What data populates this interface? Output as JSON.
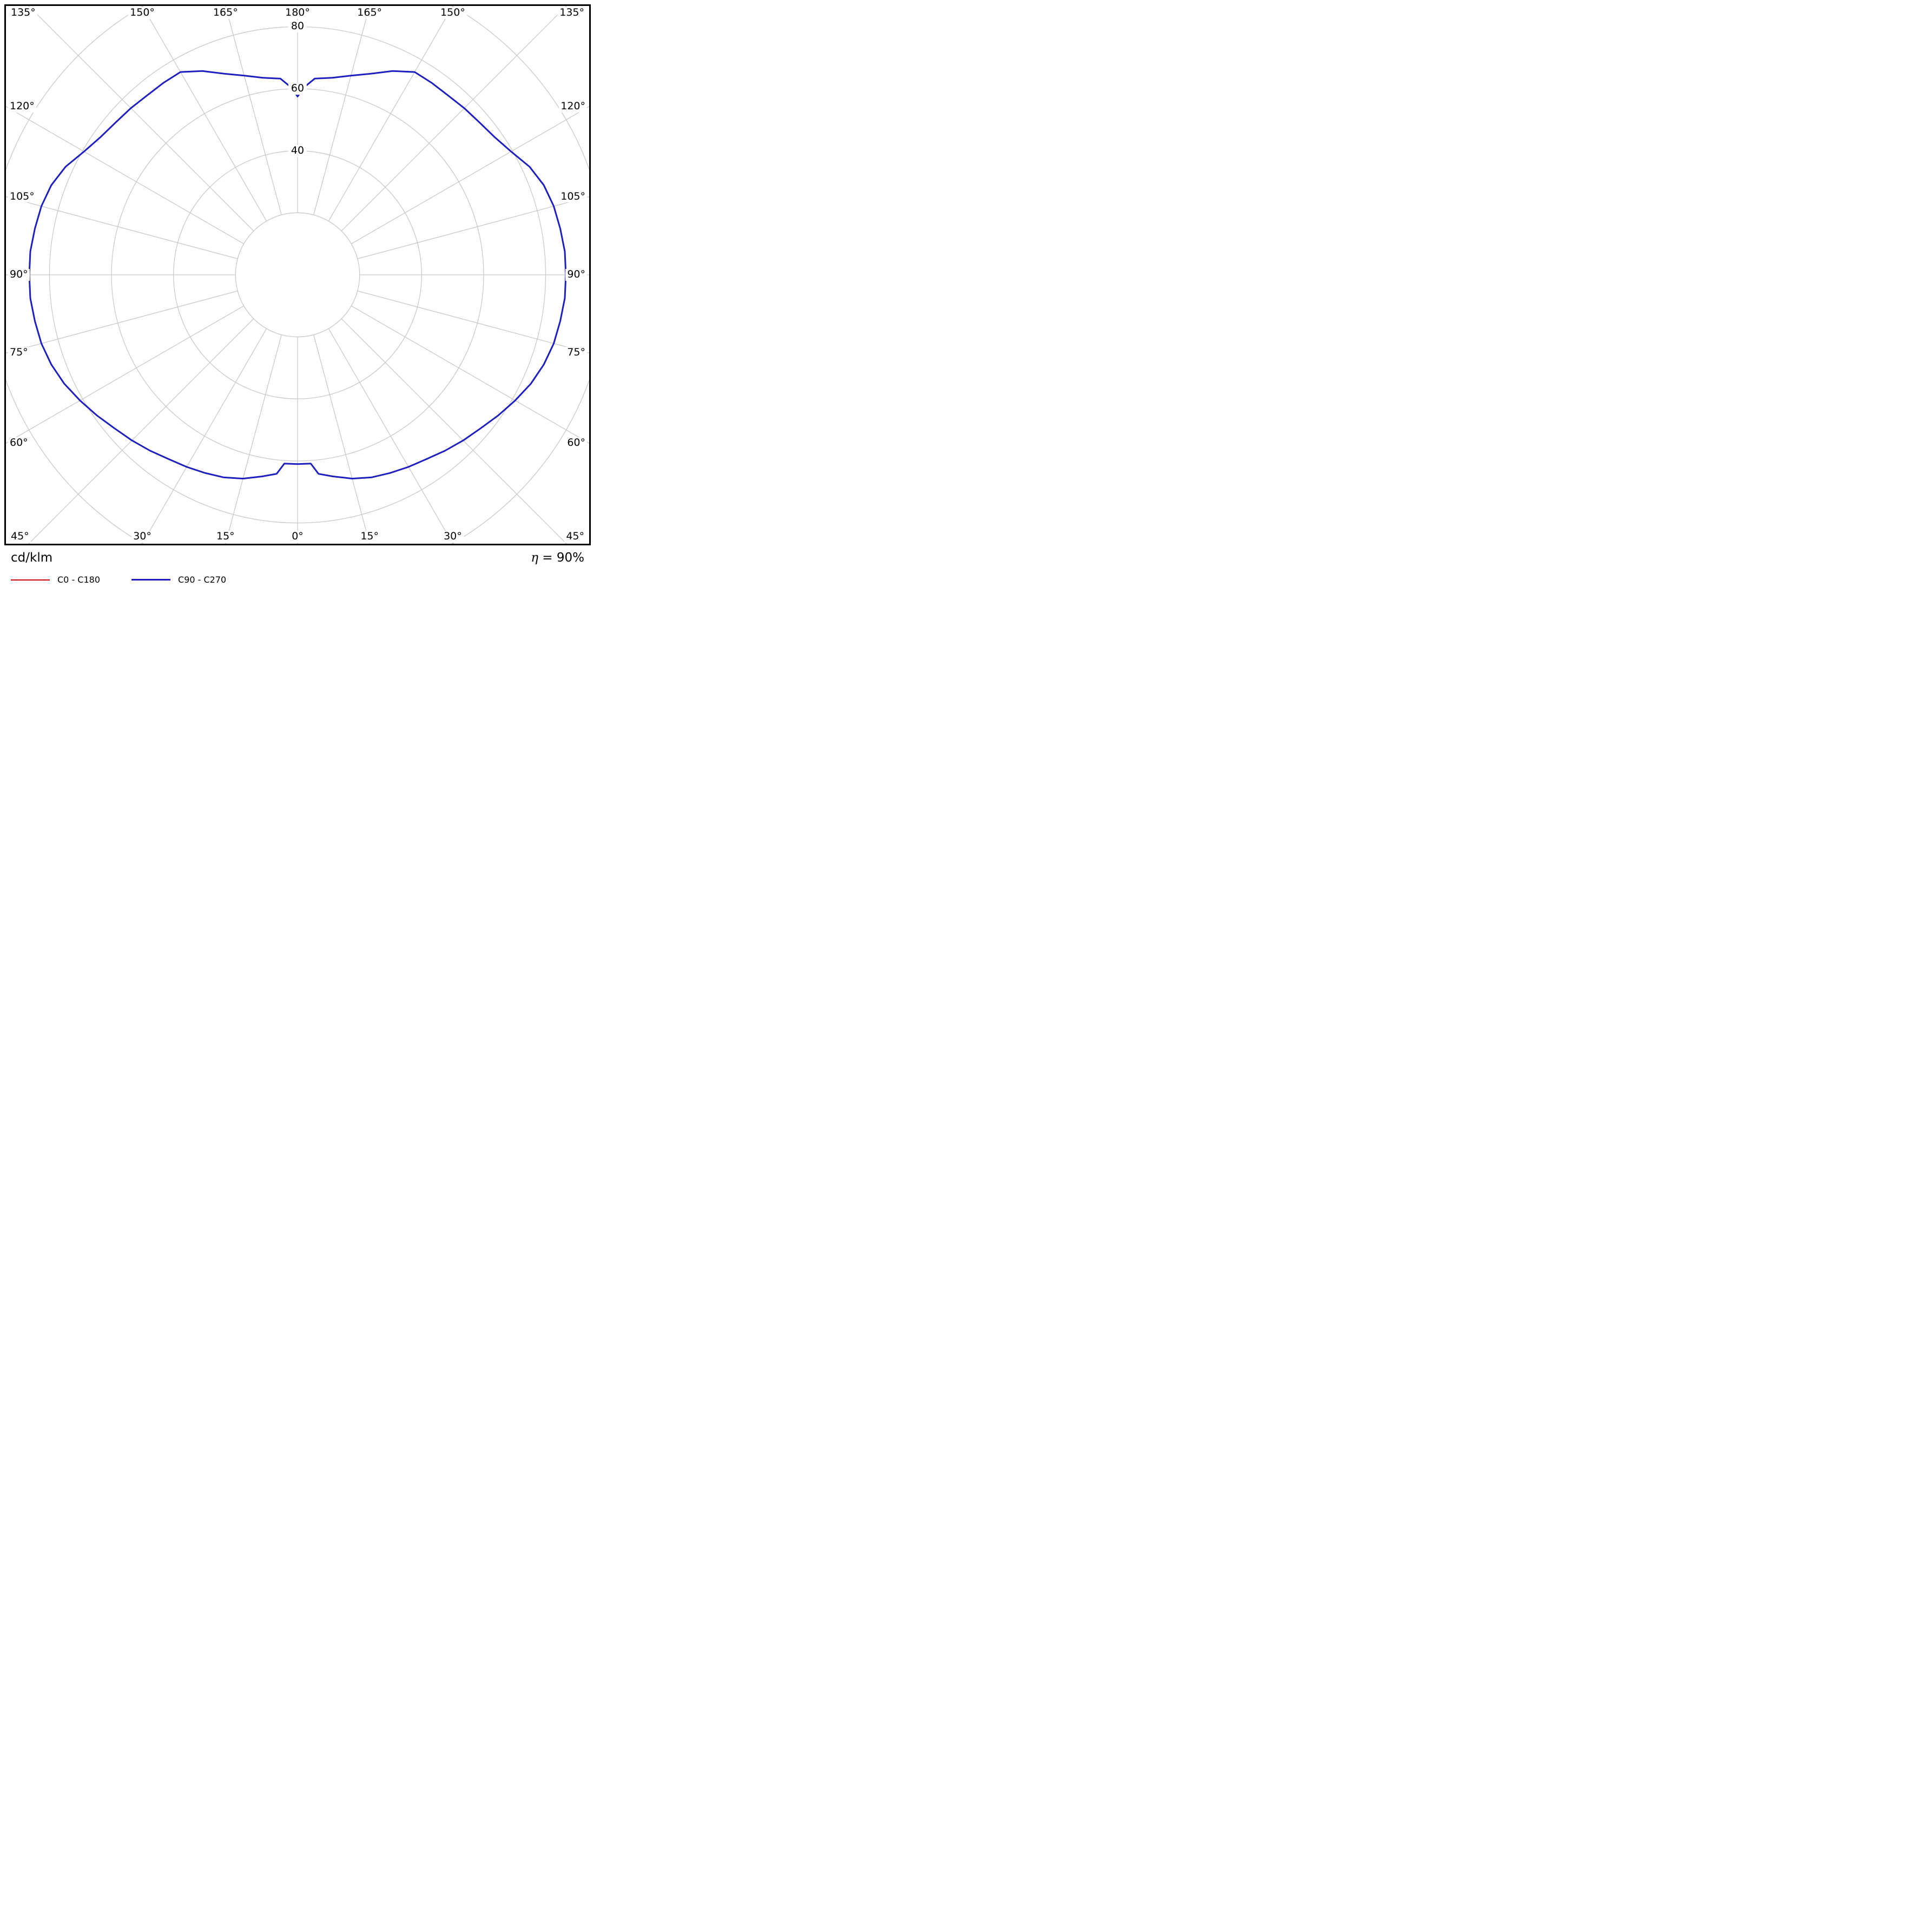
{
  "footer": {
    "units_label": "cd/klm",
    "efficiency_symbol": "η",
    "efficiency_value": " = 90%"
  },
  "chart_data": {
    "type": "line",
    "coordinate_system": "polar-photometric",
    "description": "Luminaire polar light distribution curve (intensity in cd/klm vs gamma angle)",
    "units": "cd/klm",
    "efficiency": "η = 90%",
    "grid_on": true,
    "grid_color": "#c9c9c9",
    "frame_color": "#000000",
    "radial_range": [
      0,
      100
    ],
    "radial_circles": [
      20,
      40,
      60,
      80,
      100
    ],
    "radial_axis_labels": [
      {
        "value": 40,
        "text": "40"
      },
      {
        "value": 60,
        "text": "60"
      },
      {
        "value": 80,
        "text": "80"
      }
    ],
    "spoke_step_deg": 15,
    "spoke_inner_value": 20,
    "gamma_labels": [
      {
        "gamma": 0,
        "text": "0°"
      },
      {
        "gamma": 15,
        "text": "15°"
      },
      {
        "gamma": 30,
        "text": "30°"
      },
      {
        "gamma": 45,
        "text": "45°"
      },
      {
        "gamma": 60,
        "text": "60°"
      },
      {
        "gamma": 75,
        "text": "75°"
      },
      {
        "gamma": 90,
        "text": "90°"
      },
      {
        "gamma": 105,
        "text": "105°"
      },
      {
        "gamma": 120,
        "text": "120°"
      },
      {
        "gamma": 135,
        "text": "135°"
      },
      {
        "gamma": 150,
        "text": "150°"
      },
      {
        "gamma": 165,
        "text": "165°"
      },
      {
        "gamma": 180,
        "text": "180°"
      }
    ],
    "legend_position": "bottom-left",
    "series": [
      {
        "name": "C0 - C180",
        "color": "#cc0000",
        "gamma": [
          0,
          4,
          6,
          10,
          15,
          20,
          25,
          30,
          35,
          40,
          45,
          50,
          55,
          60,
          65,
          70,
          75,
          80,
          85,
          90,
          95,
          100,
          105,
          110,
          115,
          120,
          125,
          130,
          135,
          140,
          145,
          150,
          155,
          160,
          165,
          170,
          175,
          178,
          180
        ],
        "values": [
          61,
          61,
          64.5,
          66,
          68,
          69.5,
          70.5,
          71.5,
          72.5,
          74,
          75.5,
          77,
          79,
          81,
          83,
          84.5,
          85.5,
          86,
          86.5,
          86.5,
          86.5,
          86,
          85.5,
          84.5,
          82.5,
          79.5,
          77.5,
          76.5,
          76,
          75.5,
          75.5,
          75.5,
          72.5,
          69,
          66.5,
          64.5,
          63.5,
          60.5,
          57.5
        ]
      },
      {
        "name": "C90 - C270",
        "color": "#1f1fbe",
        "gamma": [
          0,
          4,
          6,
          10,
          15,
          20,
          25,
          30,
          35,
          40,
          45,
          50,
          55,
          60,
          65,
          70,
          75,
          80,
          85,
          90,
          95,
          100,
          105,
          110,
          115,
          120,
          125,
          130,
          135,
          140,
          145,
          150,
          155,
          160,
          165,
          170,
          175,
          178,
          180
        ],
        "values": [
          61,
          61,
          64.5,
          66,
          68,
          69.5,
          70.5,
          71.5,
          72.5,
          74,
          75.5,
          77,
          79,
          81,
          83,
          84.5,
          85.5,
          86,
          86.5,
          86.5,
          86.5,
          86,
          85.5,
          84.5,
          82.5,
          79.5,
          77.5,
          76.5,
          76,
          75.5,
          75.5,
          75.5,
          72.5,
          69,
          66.5,
          64.5,
          63.5,
          60.5,
          57.5
        ]
      }
    ]
  }
}
